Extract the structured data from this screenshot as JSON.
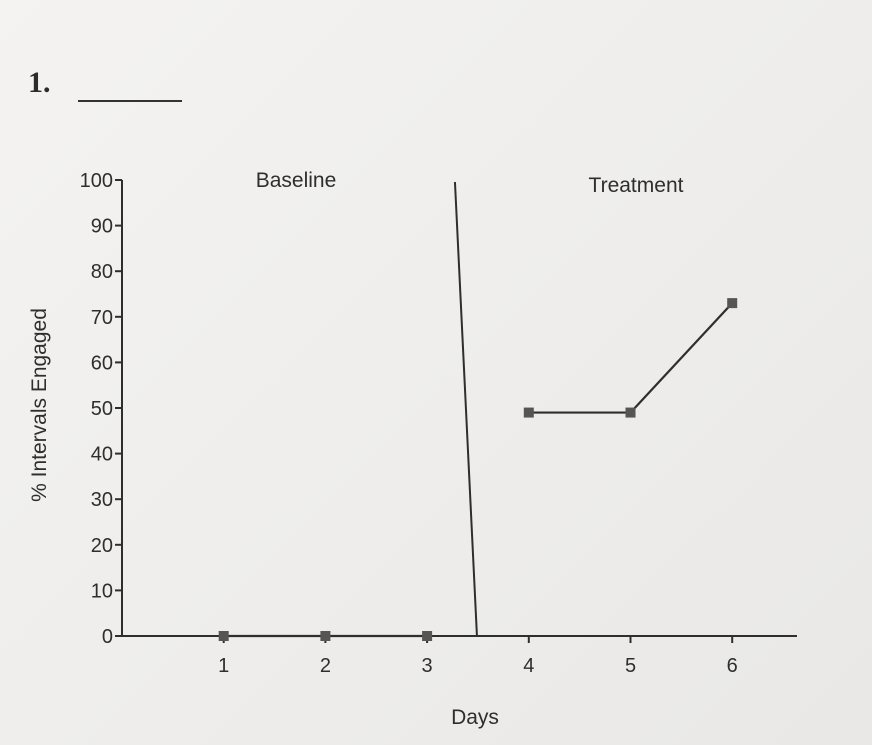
{
  "problem": {
    "number": "1."
  },
  "colors": {
    "ink": "#2e2e2e",
    "marker": "#555555",
    "paper": "#f1f0ee"
  },
  "chart_data": {
    "type": "line",
    "title": "",
    "xlabel": "Days",
    "ylabel": "% Intervals Engaged",
    "xlim": [
      0,
      6.5
    ],
    "ylim": [
      0,
      100
    ],
    "x_ticks": [
      "1",
      "2",
      "3",
      "4",
      "5",
      "6"
    ],
    "y_ticks": [
      "0",
      "10",
      "20",
      "30",
      "40",
      "50",
      "60",
      "70",
      "80",
      "90",
      "100"
    ],
    "grid": false,
    "legend": "none",
    "phase_change_after_x": 3.5,
    "phases": [
      {
        "label": "Baseline",
        "x": [
          1,
          2,
          3
        ],
        "y": [
          0,
          0,
          0
        ]
      },
      {
        "label": "Treatment",
        "x": [
          4,
          5,
          6
        ],
        "y": [
          49,
          49,
          73
        ]
      }
    ]
  }
}
